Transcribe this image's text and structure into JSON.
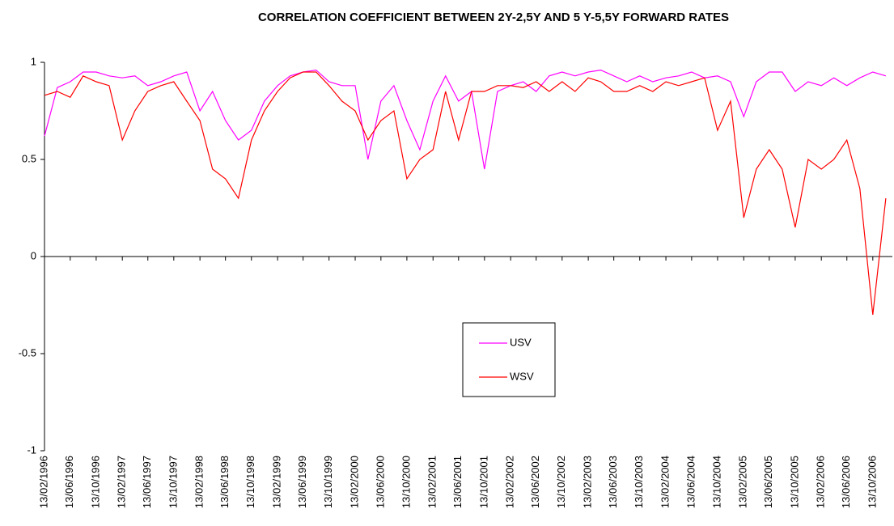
{
  "chart_data": {
    "type": "line",
    "title": "CORRELATION COEFFICIENT BETWEEN 2Y-2,5Y AND 5 Y-5,5Y FORWARD RATES",
    "x": [
      "13/02/1996",
      "13/04/1996",
      "13/06/1996",
      "13/08/1996",
      "13/10/1996",
      "13/12/1996",
      "13/02/1997",
      "13/04/1997",
      "13/06/1997",
      "13/08/1997",
      "13/10/1997",
      "13/12/1997",
      "13/02/1998",
      "13/04/1998",
      "13/06/1998",
      "13/08/1998",
      "13/10/1998",
      "13/12/1998",
      "13/02/1999",
      "13/04/1999",
      "13/06/1999",
      "13/08/1999",
      "13/10/1999",
      "13/12/1999",
      "13/02/2000",
      "13/04/2000",
      "13/06/2000",
      "13/08/2000",
      "13/10/2000",
      "13/12/2000",
      "13/02/2001",
      "13/04/2001",
      "13/06/2001",
      "13/08/2001",
      "13/10/2001",
      "13/12/2001",
      "13/02/2002",
      "13/04/2002",
      "13/06/2002",
      "13/08/2002",
      "13/10/2002",
      "13/12/2002",
      "13/02/2003",
      "13/04/2003",
      "13/06/2003",
      "13/08/2003",
      "13/10/2003",
      "13/12/2003",
      "13/02/2004",
      "13/04/2004",
      "13/06/2004",
      "13/08/2004",
      "13/10/2004",
      "13/12/2004",
      "13/02/2005",
      "13/04/2005",
      "13/06/2005",
      "13/08/2005",
      "13/10/2005",
      "13/12/2005",
      "13/02/2006",
      "13/04/2006",
      "13/06/2006",
      "13/08/2006",
      "13/10/2006",
      "13/12/2006"
    ],
    "series": [
      {
        "name": "USV",
        "color": "#ff00ff",
        "values": [
          0.62,
          0.87,
          0.9,
          0.95,
          0.95,
          0.93,
          0.92,
          0.93,
          0.88,
          0.9,
          0.93,
          0.95,
          0.75,
          0.85,
          0.7,
          0.6,
          0.65,
          0.8,
          0.88,
          0.93,
          0.95,
          0.96,
          0.9,
          0.88,
          0.88,
          0.5,
          0.8,
          0.88,
          0.7,
          0.55,
          0.8,
          0.93,
          0.8,
          0.85,
          0.45,
          0.85,
          0.88,
          0.9,
          0.85,
          0.93,
          0.95,
          0.93,
          0.95,
          0.96,
          0.93,
          0.9,
          0.93,
          0.9,
          0.92,
          0.93,
          0.95,
          0.92,
          0.93,
          0.9,
          0.72,
          0.9,
          0.95,
          0.95,
          0.85,
          0.9,
          0.88,
          0.92,
          0.88,
          0.92,
          0.95,
          0.93
        ]
      },
      {
        "name": "WSV",
        "color": "#ff0000",
        "values": [
          0.83,
          0.85,
          0.82,
          0.93,
          0.9,
          0.88,
          0.6,
          0.75,
          0.85,
          0.88,
          0.9,
          0.8,
          0.7,
          0.45,
          0.4,
          0.3,
          0.6,
          0.75,
          0.85,
          0.92,
          0.95,
          0.95,
          0.88,
          0.8,
          0.75,
          0.6,
          0.7,
          0.75,
          0.4,
          0.5,
          0.55,
          0.85,
          0.6,
          0.85,
          0.85,
          0.88,
          0.88,
          0.87,
          0.9,
          0.85,
          0.9,
          0.85,
          0.92,
          0.9,
          0.85,
          0.85,
          0.88,
          0.85,
          0.9,
          0.88,
          0.9,
          0.92,
          0.65,
          0.8,
          0.2,
          0.45,
          0.55,
          0.45,
          0.15,
          0.5,
          0.45,
          0.5,
          0.6,
          0.35,
          -0.3,
          0.3
        ]
      }
    ],
    "xlim": [
      "13/02/1996",
      "13/01/2007"
    ],
    "xticks": [
      "13/02/1996",
      "13/06/1996",
      "13/10/1996",
      "13/02/1997",
      "13/06/1997",
      "13/10/1997",
      "13/02/1998",
      "13/06/1998",
      "13/10/1998",
      "13/02/1999",
      "13/06/1999",
      "13/10/1999",
      "13/02/2000",
      "13/06/2000",
      "13/10/2000",
      "13/02/2001",
      "13/06/2001",
      "13/10/2001",
      "13/02/2002",
      "13/06/2002",
      "13/10/2002",
      "13/02/2003",
      "13/06/2003",
      "13/10/2003",
      "13/02/2004",
      "13/06/2004",
      "13/10/2004",
      "13/02/2005",
      "13/06/2005",
      "13/10/2005",
      "13/02/2006",
      "13/06/2006",
      "13/10/2006"
    ],
    "ylim": [
      -1,
      1
    ],
    "yticks": [
      -1,
      -0.5,
      0,
      0.5,
      1
    ],
    "grid": false,
    "legend": "center"
  }
}
